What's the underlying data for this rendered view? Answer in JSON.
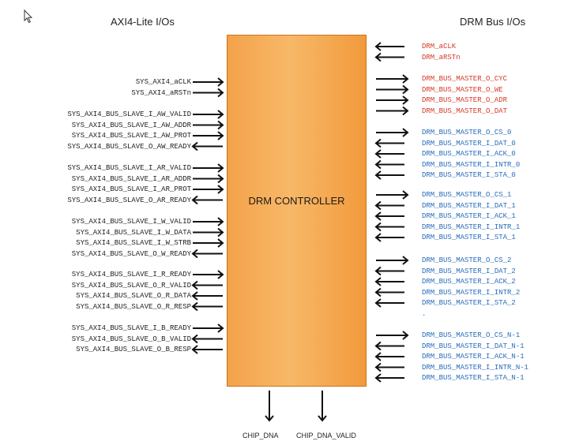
{
  "headers": {
    "left": "AXI4-Lite I/Os",
    "right": "DRM Bus I/Os"
  },
  "block": {
    "label": "DRM CONTROLLER",
    "fill": "#f7a94f"
  },
  "left_groups": [
    [
      {
        "name": "SYS_AXI4_aCLK",
        "dir": "in"
      },
      {
        "name": "SYS_AXI4_aRSTn",
        "dir": "in"
      }
    ],
    [
      {
        "name": "SYS_AXI4_BUS_SLAVE_I_AW_VALID",
        "dir": "in"
      },
      {
        "name": "SYS_AXI4_BUS_SLAVE_I_AW_ADDR",
        "dir": "in"
      },
      {
        "name": "SYS_AXI4_BUS_SLAVE_I_AW_PROT",
        "dir": "in"
      },
      {
        "name": "SYS_AXI4_BUS_SLAVE_O_AW_READY",
        "dir": "out"
      }
    ],
    [
      {
        "name": "SYS_AXI4_BUS_SLAVE_I_AR_VALID",
        "dir": "in"
      },
      {
        "name": "SYS_AXI4_BUS_SLAVE_I_AR_ADDR",
        "dir": "in"
      },
      {
        "name": "SYS_AXI4_BUS_SLAVE_I_AR_PROT",
        "dir": "in"
      },
      {
        "name": "SYS_AXI4_BUS_SLAVE_O_AR_READY",
        "dir": "out"
      }
    ],
    [
      {
        "name": "SYS_AXI4_BUS_SLAVE_I_W_VALID",
        "dir": "in"
      },
      {
        "name": "SYS_AXI4_BUS_SLAVE_I_W_DATA",
        "dir": "in"
      },
      {
        "name": "SYS_AXI4_BUS_SLAVE_I_W_STRB",
        "dir": "in"
      },
      {
        "name": "SYS_AXI4_BUS_SLAVE_O_W_READY",
        "dir": "out"
      }
    ],
    [
      {
        "name": "SYS_AXI4_BUS_SLAVE_I_R_READY",
        "dir": "in"
      },
      {
        "name": "SYS_AXI4_BUS_SLAVE_O_R_VALID",
        "dir": "out"
      },
      {
        "name": "SYS_AXI4_BUS_SLAVE_O_R_DATA",
        "dir": "out"
      },
      {
        "name": "SYS_AXI4_BUS_SLAVE_O_R_RESP",
        "dir": "out"
      }
    ],
    [
      {
        "name": "SYS_AXI4_BUS_SLAVE_I_B_READY",
        "dir": "in"
      },
      {
        "name": "SYS_AXI4_BUS_SLAVE_O_B_VALID",
        "dir": "out"
      },
      {
        "name": "SYS_AXI4_BUS_SLAVE_O_B_RESP",
        "dir": "out"
      }
    ]
  ],
  "right_groups": [
    {
      "color": "#d43a2a",
      "signals": [
        {
          "name": "DRM_aCLK",
          "dir": "in"
        },
        {
          "name": "DRM_aRSTn",
          "dir": "in"
        }
      ]
    },
    {
      "color": "#d43a2a",
      "signals": [
        {
          "name": "DRM_BUS_MASTER_O_CYC",
          "dir": "out"
        },
        {
          "name": "DRM_BUS_MASTER_O_WE",
          "dir": "out"
        },
        {
          "name": "DRM_BUS_MASTER_O_ADR",
          "dir": "out"
        },
        {
          "name": "DRM_BUS_MASTER_O_DAT",
          "dir": "out"
        }
      ]
    },
    {
      "color": "#2a6dbd",
      "signals": [
        {
          "name": "DRM_BUS_MASTER_O_CS_0",
          "dir": "out"
        },
        {
          "name": "DRM_BUS_MASTER_I_DAT_0",
          "dir": "in"
        },
        {
          "name": "DRM_BUS_MASTER_I_ACK_0",
          "dir": "in"
        },
        {
          "name": "DRM_BUS_MASTER_I_INTR_0",
          "dir": "in"
        },
        {
          "name": "DRM_BUS_MASTER_I_STA_0",
          "dir": "in"
        }
      ]
    },
    {
      "color": "#2a6dbd",
      "signals": [
        {
          "name": "DRM_BUS_MASTER_O_CS_1",
          "dir": "out"
        },
        {
          "name": "DRM_BUS_MASTER_I_DAT_1",
          "dir": "in"
        },
        {
          "name": "DRM_BUS_MASTER_I_ACK_1",
          "dir": "in"
        },
        {
          "name": "DRM_BUS_MASTER_I_INTR_1",
          "dir": "in"
        },
        {
          "name": "DRM_BUS_MASTER_I_STA_1",
          "dir": "in"
        }
      ]
    },
    {
      "color": "#2a6dbd",
      "signals": [
        {
          "name": "DRM_BUS_MASTER_O_CS_2",
          "dir": "out"
        },
        {
          "name": "DRM_BUS_MASTER_I_DAT_2",
          "dir": "in"
        },
        {
          "name": "DRM_BUS_MASTER_I_ACK_2",
          "dir": "in"
        },
        {
          "name": "DRM_BUS_MASTER_I_INTR_2",
          "dir": "in"
        },
        {
          "name": "DRM_BUS_MASTER_I_STA_2",
          "dir": "in"
        },
        {
          "name": ".",
          "dir": "none"
        }
      ]
    },
    {
      "color": "#2a6dbd",
      "signals": [
        {
          "name": "DRM_BUS_MASTER_O_CS_N-1",
          "dir": "out"
        },
        {
          "name": "DRM_BUS_MASTER_I_DAT_N-1",
          "dir": "in"
        },
        {
          "name": "DRM_BUS_MASTER_I_ACK_N-1",
          "dir": "in"
        },
        {
          "name": "DRM_BUS_MASTER_I_INTR_N-1",
          "dir": "in"
        },
        {
          "name": "DRM_BUS_MASTER_I_STA_N-1",
          "dir": "in"
        }
      ]
    }
  ],
  "bottom": [
    {
      "name": "CHIP_DNA",
      "dir": "out"
    },
    {
      "name": "CHIP_DNA_VALID",
      "dir": "out"
    }
  ]
}
